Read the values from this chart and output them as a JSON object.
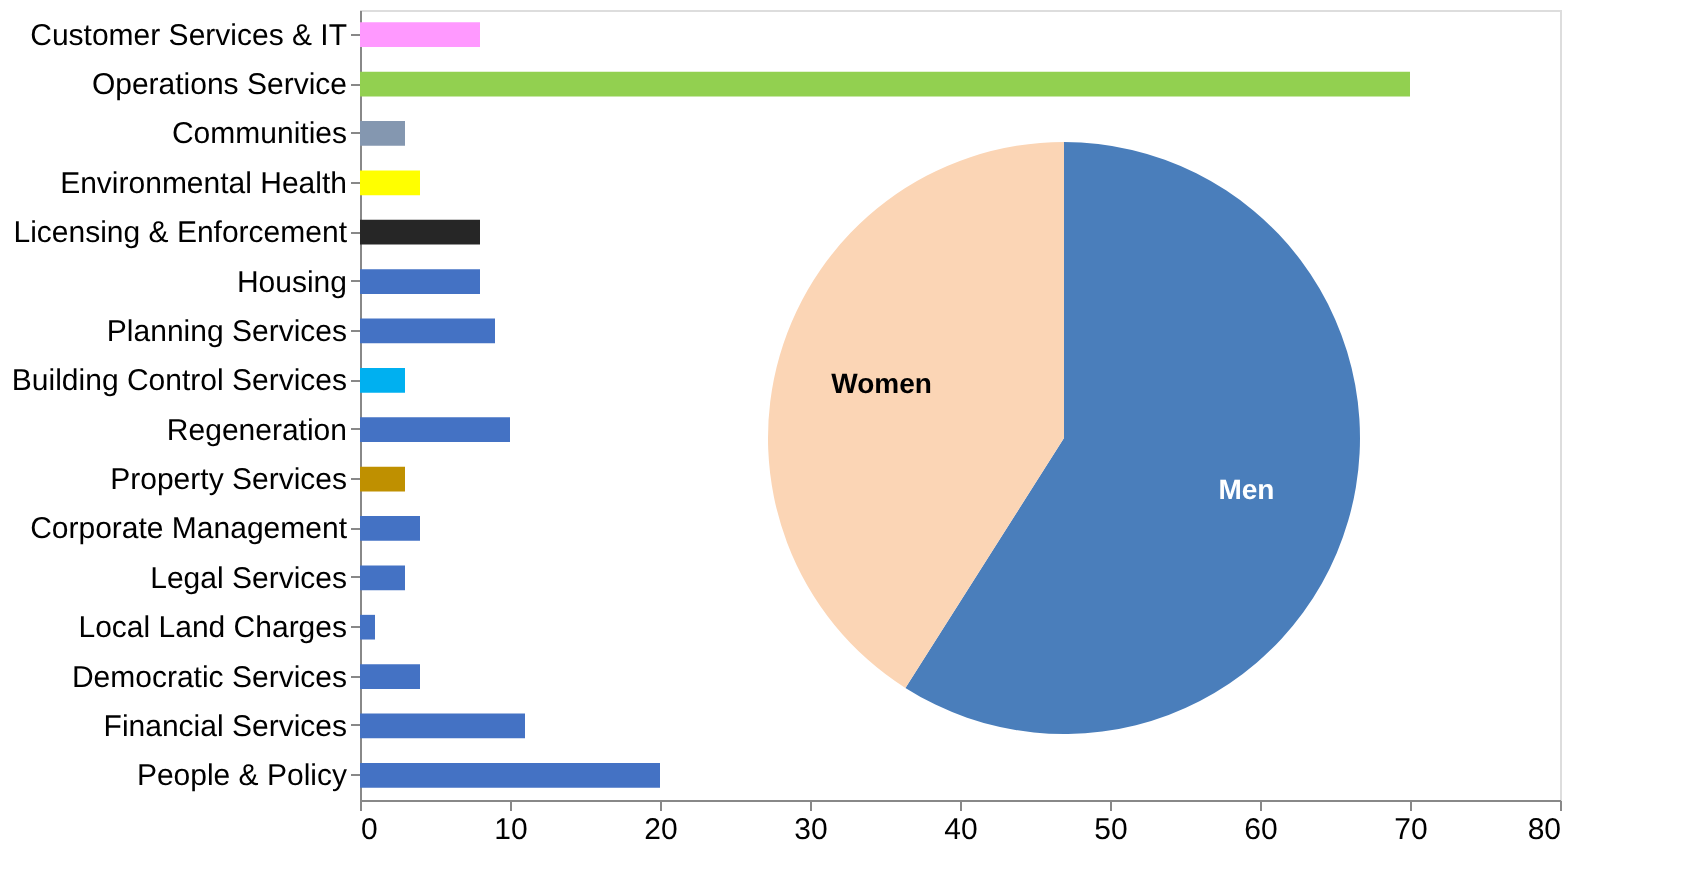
{
  "chart_data": [
    {
      "type": "bar",
      "orientation": "horizontal",
      "categories": [
        "Customer Services & IT",
        "Operations Service",
        "Communities",
        "Environmental Health",
        "Licensing & Enforcement",
        "Housing",
        "Planning Services",
        "Building Control Services",
        "Regeneration",
        "Property Services",
        "Corporate Management",
        "Legal Services",
        "Local Land Charges",
        "Democratic Services",
        "Financial Services",
        "People & Policy"
      ],
      "values": [
        8,
        70,
        3,
        4,
        8,
        8,
        9,
        3,
        10,
        3,
        4,
        3,
        1,
        4,
        11,
        20
      ],
      "colors": [
        "#ff99ff",
        "#92d050",
        "#8497b0",
        "#ffff00",
        "#262626",
        "#4472c4",
        "#4472c4",
        "#00b0f0",
        "#4472c4",
        "#bf9000",
        "#4472c4",
        "#4472c4",
        "#4472c4",
        "#4472c4",
        "#4472c4",
        "#4472c4"
      ],
      "xlim": [
        0,
        80
      ],
      "xticks": [
        0,
        10,
        20,
        30,
        40,
        50,
        60,
        70,
        80
      ],
      "grid": false
    },
    {
      "type": "pie",
      "categories": [
        "Men",
        "Women"
      ],
      "values": [
        59,
        41
      ],
      "colors": [
        "#4a7ebb",
        "#fbd5b5"
      ]
    }
  ]
}
